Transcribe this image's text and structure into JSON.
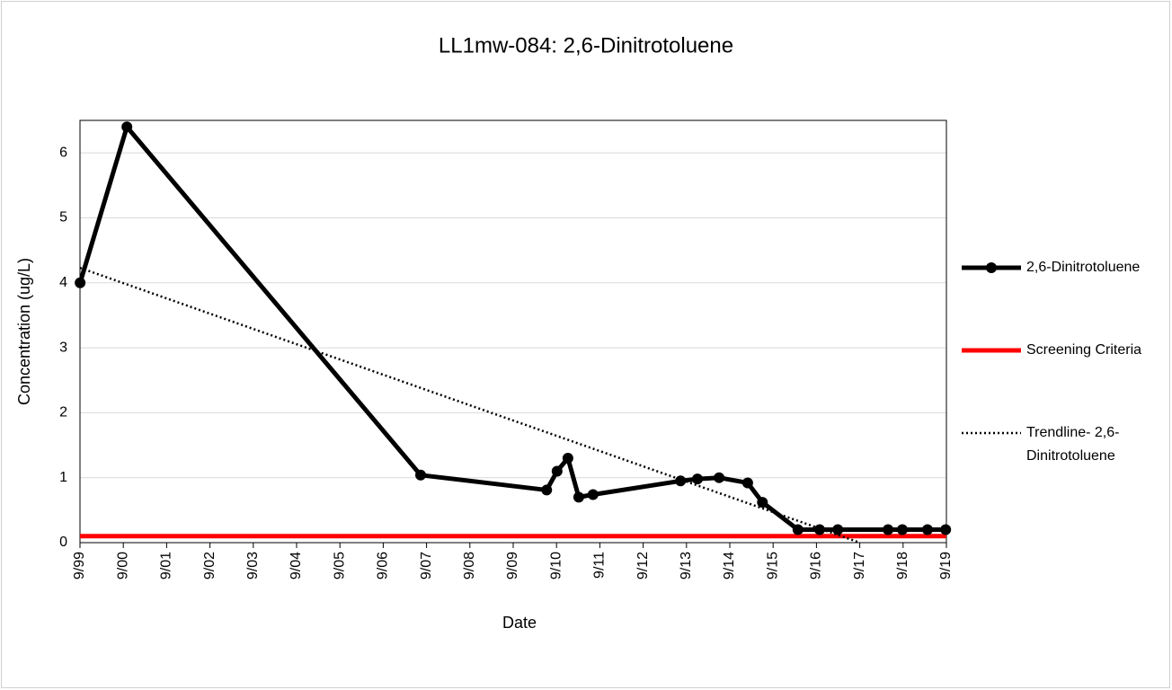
{
  "chart_data": {
    "type": "line",
    "title": "LL1mw-084: 2,6-Dinitrotoluene",
    "x_label": "Date",
    "y_label": "Concentration (ug/L)",
    "xlim": [
      1999.667,
      2019.667
    ],
    "xticks": [
      {
        "value": 1999.667,
        "label": "9/99"
      },
      {
        "value": 2000.667,
        "label": "9/00"
      },
      {
        "value": 2001.667,
        "label": "9/01"
      },
      {
        "value": 2002.667,
        "label": "9/02"
      },
      {
        "value": 2003.667,
        "label": "9/03"
      },
      {
        "value": 2004.667,
        "label": "9/04"
      },
      {
        "value": 2005.667,
        "label": "9/05"
      },
      {
        "value": 2006.667,
        "label": "9/06"
      },
      {
        "value": 2007.667,
        "label": "9/07"
      },
      {
        "value": 2008.667,
        "label": "9/08"
      },
      {
        "value": 2009.667,
        "label": "9/09"
      },
      {
        "value": 2010.667,
        "label": "9/10"
      },
      {
        "value": 2011.667,
        "label": "9/11"
      },
      {
        "value": 2012.667,
        "label": "9/12"
      },
      {
        "value": 2013.667,
        "label": "9/13"
      },
      {
        "value": 2014.667,
        "label": "9/14"
      },
      {
        "value": 2015.667,
        "label": "9/15"
      },
      {
        "value": 2016.667,
        "label": "9/16"
      },
      {
        "value": 2017.667,
        "label": "9/17"
      },
      {
        "value": 2018.667,
        "label": "9/18"
      },
      {
        "value": 2019.667,
        "label": "9/19"
      }
    ],
    "ylim": [
      0,
      6.5
    ],
    "yticks": [
      0,
      1,
      2,
      3,
      4,
      5,
      6
    ],
    "grid": true,
    "legend": "right",
    "series": [
      {
        "name": "2,6-Dinitrotoluene",
        "color": "#000000",
        "style": "solid",
        "markers": true,
        "x": [
          1999.67,
          2000.75,
          2007.53,
          2010.44,
          2010.68,
          2010.93,
          2011.18,
          2011.51,
          2013.53,
          2013.92,
          2014.42,
          2015.08,
          2015.42,
          2016.24,
          2016.74,
          2017.16,
          2018.32,
          2018.65,
          2019.23,
          2019.65
        ],
        "values": [
          4.0,
          6.4,
          1.04,
          0.81,
          1.1,
          1.3,
          0.7,
          0.74,
          0.95,
          0.98,
          1.0,
          0.92,
          0.62,
          0.2,
          0.2,
          0.2,
          0.2,
          0.2,
          0.2,
          0.2
        ]
      },
      {
        "name": "Screening Criteria",
        "color": "#ff0000",
        "style": "solid",
        "markers": false,
        "x": [
          1999.667,
          2019.667
        ],
        "values": [
          0.1,
          0.1
        ]
      },
      {
        "name": "Trendline- 2,6-Dinitrotoluene",
        "color": "#000000",
        "style": "dotted",
        "markers": false,
        "x": [
          1999.667,
          2017.667
        ],
        "values": [
          4.23,
          0
        ]
      }
    ]
  }
}
